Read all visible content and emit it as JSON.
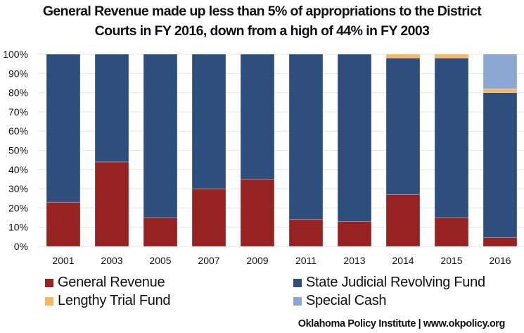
{
  "chart_data": {
    "type": "bar",
    "stacked": true,
    "title": "General Revenue made up less than 5% of appropriations to the District Courts in FY 2016, down from a high of 44% in FY 2003",
    "title_lines": [
      "General Revenue made up less than 5% of appropriations to the District",
      "Courts in FY 2016, down from a high of 44% in FY 2003"
    ],
    "xlabel": "",
    "ylabel": "",
    "ylim": [
      0,
      100
    ],
    "yticks": [
      "0%",
      "10%",
      "20%",
      "30%",
      "40%",
      "50%",
      "60%",
      "70%",
      "80%",
      "90%",
      "100%"
    ],
    "grid": true,
    "legend_position": "bottom",
    "categories": [
      "2001",
      "2003",
      "2005",
      "2007",
      "2009",
      "2011",
      "2013",
      "2014",
      "2015",
      "2016"
    ],
    "series": [
      {
        "name": "General Revenue",
        "color": "#962322",
        "values": [
          23,
          44,
          15,
          30,
          35,
          14,
          13,
          27,
          15,
          4.6
        ]
      },
      {
        "name": "State Judicial Revolving Fund",
        "color": "#2e4f7d",
        "values": [
          77,
          56,
          85,
          70,
          65,
          86,
          87,
          71,
          83,
          75.4
        ]
      },
      {
        "name": "Lengthy Trial Fund",
        "color": "#f9b75f",
        "values": [
          0,
          0,
          0,
          0,
          0,
          0,
          0,
          2,
          2,
          2
        ]
      },
      {
        "name": "Special Cash",
        "color": "#8aa8d2",
        "values": [
          0,
          0,
          0,
          0,
          0,
          0,
          0,
          0,
          0,
          18
        ]
      }
    ]
  },
  "footer": "Oklahoma Policy Institute | www.okpolicy.org"
}
